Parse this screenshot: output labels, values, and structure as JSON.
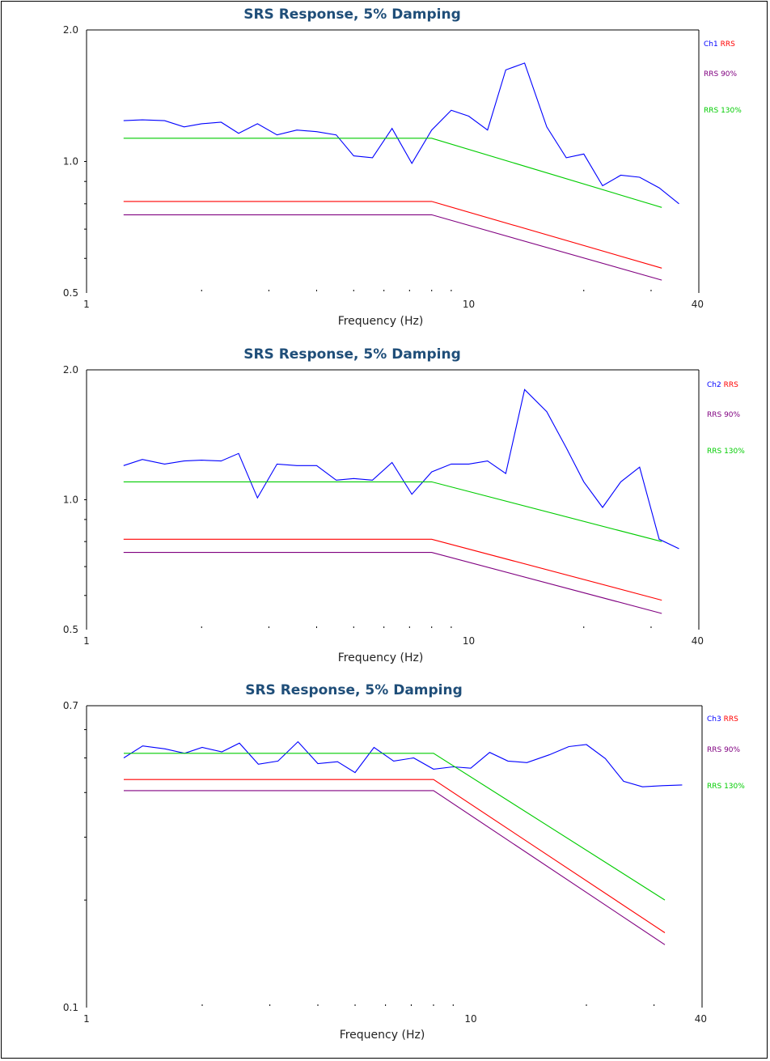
{
  "colors": {
    "title": "#1f4e79",
    "measured": "#0000ff",
    "rrs": "#ff0000",
    "rrs90": "#800080",
    "rrs130": "#00cc00",
    "axis": "#000000"
  },
  "chart_data": [
    {
      "type": "line",
      "title": "SRS Response, 5% Damping",
      "xlabel": "Frequency (Hz)",
      "ylabel": "",
      "x_scale": "log",
      "y_scale": "log",
      "xlim": [
        1,
        40
      ],
      "ylim": [
        0.5,
        2.0
      ],
      "x_tick_labels": [
        "1",
        "10",
        "40"
      ],
      "y_tick_labels": [
        "0.5",
        "1.0",
        "2.0"
      ],
      "grid": false,
      "legend_position": "right",
      "legend": [
        {
          "channel": "Ch1",
          "label": "RRS",
          "key": "rrs"
        },
        {
          "label": "RRS 90%",
          "key": "rrs90"
        },
        {
          "label": "RRS 130%",
          "key": "rrs130"
        }
      ],
      "series": [
        {
          "key": "measured",
          "x": [
            1.25,
            1.4,
            1.6,
            1.8,
            2.0,
            2.25,
            2.5,
            2.8,
            3.15,
            3.55,
            4.0,
            4.5,
            5.0,
            5.6,
            6.3,
            7.1,
            8.0,
            9.0,
            10.0,
            11.2,
            12.5,
            14.0,
            16.0,
            18.0,
            20.0,
            22.4,
            25.0,
            28.0,
            31.5,
            35.5
          ],
          "y": [
            1.24,
            1.245,
            1.24,
            1.2,
            1.22,
            1.23,
            1.16,
            1.22,
            1.15,
            1.18,
            1.17,
            1.15,
            1.03,
            1.02,
            1.19,
            0.99,
            1.18,
            1.31,
            1.27,
            1.18,
            1.62,
            1.68,
            1.2,
            1.02,
            1.04,
            0.88,
            0.93,
            0.92,
            0.87,
            0.8
          ]
        },
        {
          "key": "rrs130",
          "x": [
            1.25,
            8.0,
            32.0
          ],
          "y": [
            1.13,
            1.13,
            0.785
          ]
        },
        {
          "key": "rrs",
          "x": [
            1.25,
            8.0,
            32.0
          ],
          "y": [
            0.81,
            0.81,
            0.57
          ]
        },
        {
          "key": "rrs90",
          "x": [
            1.25,
            8.0,
            32.0
          ],
          "y": [
            0.755,
            0.755,
            0.535
          ]
        }
      ]
    },
    {
      "type": "line",
      "title": "SRS Response, 5% Damping",
      "xlabel": "Frequency (Hz)",
      "ylabel": "",
      "x_scale": "log",
      "y_scale": "log",
      "xlim": [
        1,
        40
      ],
      "ylim": [
        0.5,
        2.0
      ],
      "x_tick_labels": [
        "1",
        "10",
        "40"
      ],
      "y_tick_labels": [
        "0.5",
        "1.0",
        "2.0"
      ],
      "grid": false,
      "legend_position": "right",
      "legend": [
        {
          "channel": "Ch2",
          "label": "RRS",
          "key": "rrs"
        },
        {
          "label": "RRS 90%",
          "key": "rrs90"
        },
        {
          "label": "RRS 130%",
          "key": "rrs130"
        }
      ],
      "series": [
        {
          "key": "measured",
          "x": [
            1.25,
            1.4,
            1.6,
            1.8,
            2.0,
            2.25,
            2.5,
            2.8,
            3.15,
            3.55,
            4.0,
            4.5,
            5.0,
            5.6,
            6.3,
            7.1,
            8.0,
            9.0,
            10.0,
            11.2,
            12.5,
            14.0,
            16.0,
            18.0,
            20.0,
            22.4,
            25.0,
            28.0,
            31.5,
            35.5
          ],
          "y": [
            1.2,
            1.24,
            1.21,
            1.23,
            1.235,
            1.23,
            1.28,
            1.01,
            1.21,
            1.2,
            1.2,
            1.11,
            1.12,
            1.11,
            1.22,
            1.03,
            1.16,
            1.21,
            1.21,
            1.23,
            1.15,
            1.8,
            1.6,
            1.32,
            1.1,
            0.96,
            1.1,
            1.19,
            0.81,
            0.77
          ]
        },
        {
          "key": "rrs130",
          "x": [
            1.25,
            8.0,
            32.0
          ],
          "y": [
            1.1,
            1.1,
            0.8
          ]
        },
        {
          "key": "rrs",
          "x": [
            1.25,
            8.0,
            32.0
          ],
          "y": [
            0.81,
            0.81,
            0.585
          ]
        },
        {
          "key": "rrs90",
          "x": [
            1.25,
            8.0,
            32.0
          ],
          "y": [
            0.755,
            0.755,
            0.545
          ]
        }
      ]
    },
    {
      "type": "line",
      "title": "SRS Response, 5% Damping",
      "xlabel": "Frequency (Hz)",
      "ylabel": "",
      "x_scale": "log",
      "y_scale": "log",
      "xlim": [
        1,
        40
      ],
      "ylim": [
        0.1,
        0.7
      ],
      "x_tick_labels": [
        "1",
        "10",
        "40"
      ],
      "y_tick_labels": [
        "0.1",
        "0.7"
      ],
      "grid": false,
      "legend_position": "right",
      "legend": [
        {
          "channel": "Ch3",
          "label": "RRS",
          "key": "rrs"
        },
        {
          "label": "RRS 90%",
          "key": "rrs90"
        },
        {
          "label": "RRS 130%",
          "key": "rrs130"
        }
      ],
      "series": [
        {
          "key": "measured",
          "x": [
            1.25,
            1.4,
            1.6,
            1.8,
            2.0,
            2.25,
            2.5,
            2.8,
            3.15,
            3.55,
            4.0,
            4.5,
            5.0,
            5.6,
            6.3,
            7.1,
            8.0,
            9.0,
            10.0,
            11.2,
            12.5,
            14.0,
            16.0,
            18.0,
            20.0,
            22.4,
            25.0,
            28.0,
            31.5,
            35.5
          ],
          "y": [
            0.5,
            0.54,
            0.53,
            0.515,
            0.535,
            0.52,
            0.55,
            0.48,
            0.49,
            0.555,
            0.482,
            0.488,
            0.455,
            0.535,
            0.49,
            0.5,
            0.465,
            0.472,
            0.468,
            0.518,
            0.49,
            0.485,
            0.51,
            0.538,
            0.545,
            0.498,
            0.43,
            0.415,
            0.418,
            0.42
          ]
        },
        {
          "key": "rrs130",
          "x": [
            1.25,
            8.0,
            32.0
          ],
          "y": [
            0.515,
            0.515,
            0.2
          ]
        },
        {
          "key": "rrs",
          "x": [
            1.25,
            8.0,
            32.0
          ],
          "y": [
            0.435,
            0.435,
            0.162
          ]
        },
        {
          "key": "rrs90",
          "x": [
            1.25,
            8.0,
            32.0
          ],
          "y": [
            0.405,
            0.405,
            0.15
          ]
        }
      ]
    }
  ]
}
